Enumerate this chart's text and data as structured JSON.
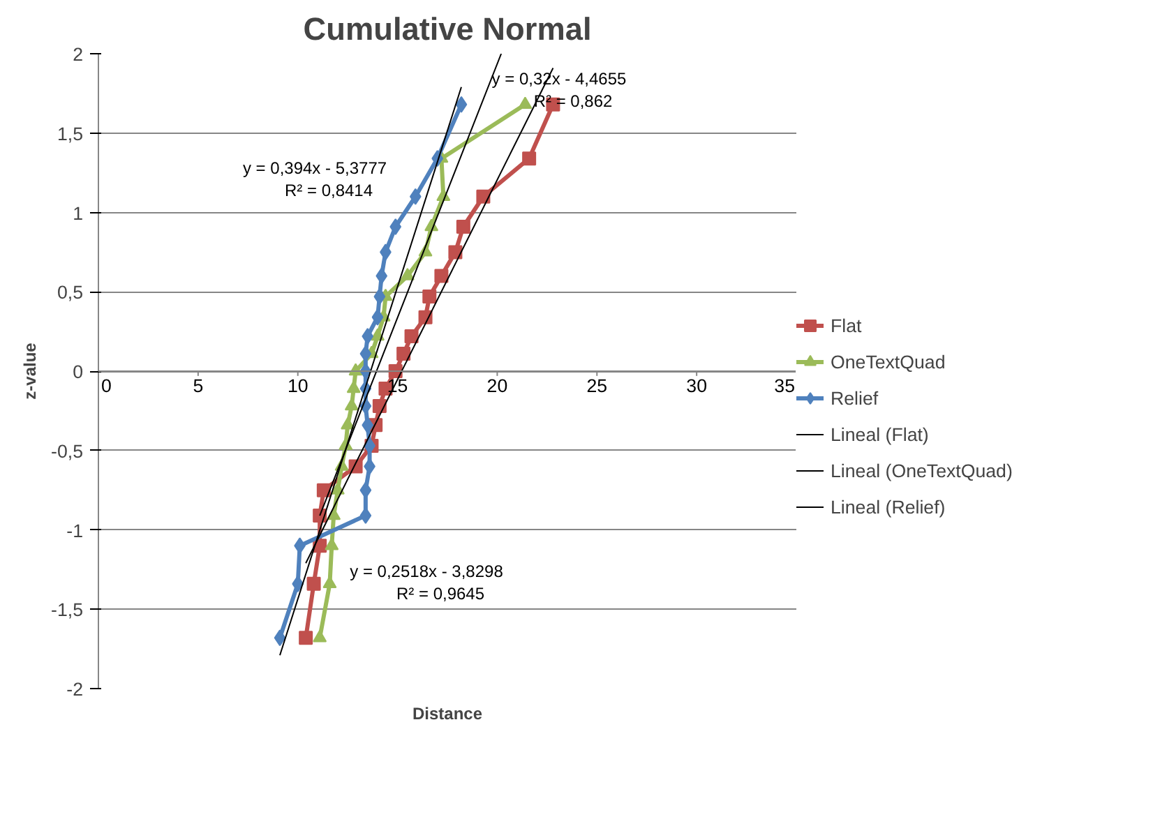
{
  "chart_data": {
    "type": "line",
    "title": "Cumulative Normal",
    "xlabel": "Distance",
    "ylabel": "z-value",
    "xlim": [
      0,
      35
    ],
    "ylim": [
      -2,
      2
    ],
    "xticks": [
      0,
      5,
      10,
      15,
      20,
      25,
      30,
      35
    ],
    "yticks": [
      {
        "value": -2,
        "label": "-2"
      },
      {
        "value": -1.5,
        "label": "-1,5"
      },
      {
        "value": -1,
        "label": "-1"
      },
      {
        "value": -0.5,
        "label": "-0,5"
      },
      {
        "value": 0,
        "label": "0"
      },
      {
        "value": 0.5,
        "label": "0,5"
      },
      {
        "value": 1,
        "label": "1"
      },
      {
        "value": 1.5,
        "label": "1,5"
      },
      {
        "value": 2,
        "label": "2"
      }
    ],
    "grid": "y",
    "legend": "right",
    "series": [
      {
        "name": "Flat",
        "color": "#c0504d",
        "marker": "square",
        "x": [
          10.4,
          10.8,
          11.1,
          11.1,
          11.3,
          12.9,
          13.7,
          13.9,
          14.1,
          14.4,
          14.9,
          15.3,
          15.7,
          16.4,
          16.6,
          17.2,
          17.9,
          18.3,
          19.3,
          21.6,
          22.8
        ],
        "values": [
          -1.68,
          -1.34,
          -1.1,
          -0.91,
          -0.75,
          -0.6,
          -0.47,
          -0.34,
          -0.22,
          -0.11,
          0,
          0.11,
          0.22,
          0.34,
          0.47,
          0.6,
          0.75,
          0.91,
          1.1,
          1.34,
          1.68
        ]
      },
      {
        "name": "OneTextQuad",
        "color": "#9bbb59",
        "marker": "triangle",
        "x": [
          11.1,
          11.6,
          11.7,
          11.8,
          12.0,
          12.2,
          12.4,
          12.5,
          12.7,
          12.8,
          12.9,
          13.7,
          14.0,
          14.3,
          14.4,
          15.5,
          16.4,
          16.7,
          17.3,
          17.2,
          21.4
        ],
        "values": [
          -1.68,
          -1.34,
          -1.1,
          -0.91,
          -0.75,
          -0.6,
          -0.47,
          -0.34,
          -0.22,
          -0.11,
          0,
          0.11,
          0.22,
          0.34,
          0.47,
          0.6,
          0.75,
          0.91,
          1.1,
          1.34,
          1.68
        ]
      },
      {
        "name": "Relief",
        "color": "#4f81bd",
        "marker": "diamond",
        "x": [
          9.1,
          10.0,
          10.1,
          13.4,
          13.4,
          13.6,
          13.6,
          13.5,
          13.4,
          13.4,
          13.4,
          13.4,
          13.5,
          14.0,
          14.1,
          14.2,
          14.4,
          14.9,
          15.9,
          17.0,
          18.2
        ],
        "values": [
          -1.68,
          -1.34,
          -1.1,
          -0.91,
          -0.75,
          -0.6,
          -0.47,
          -0.34,
          -0.22,
          -0.11,
          0,
          0.11,
          0.22,
          0.34,
          0.47,
          0.6,
          0.75,
          0.91,
          1.1,
          1.34,
          1.68
        ]
      },
      {
        "name": "Lineal (Flat)",
        "color": "#000000",
        "marker": "none",
        "x": [
          10.4,
          22.8
        ],
        "values": [
          -1.21,
          1.91
        ]
      },
      {
        "name": "Lineal (OneTextQuad)",
        "color": "#000000",
        "marker": "none",
        "x": [
          11.1,
          20.2
        ],
        "values": [
          -0.91,
          2.0
        ]
      },
      {
        "name": "Lineal (Relief)",
        "color": "#000000",
        "marker": "none",
        "x": [
          9.1,
          18.2
        ],
        "values": [
          -1.79,
          1.79
        ]
      }
    ],
    "annotations": [
      "y = 0,394x - 5,3777",
      "R² = 0,8414",
      "y = 0,32x - 4,4655",
      "R² = 0,862",
      "y = 0,2518x - 3,8298",
      "R² = 0,9645"
    ]
  }
}
